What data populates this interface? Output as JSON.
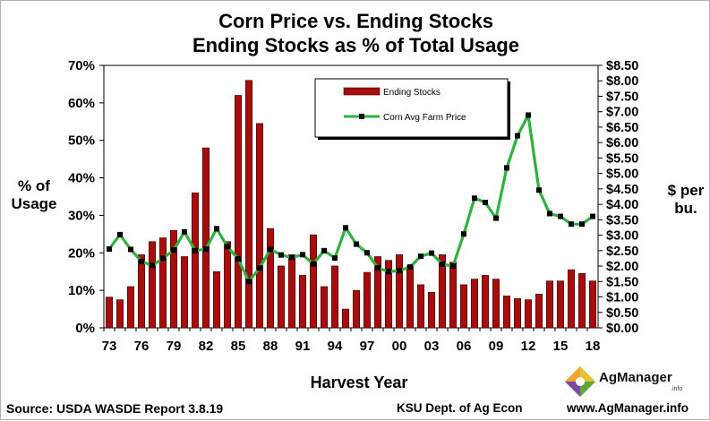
{
  "chart_data": {
    "type": "bar+line",
    "title": "Corn Price vs. Ending Stocks",
    "subtitle": "Ending Stocks as % of Total Usage",
    "xlabel": "Harvest Year",
    "ylabel_left": [
      "% of",
      "Usage"
    ],
    "ylabel_right": [
      "$ per",
      "bu."
    ],
    "x_tick_labels": [
      "73",
      "76",
      "79",
      "82",
      "85",
      "88",
      "91",
      "94",
      "97",
      "00",
      "03",
      "06",
      "09",
      "12",
      "15",
      "18"
    ],
    "years": [
      1973,
      1974,
      1975,
      1976,
      1977,
      1978,
      1979,
      1980,
      1981,
      1982,
      1983,
      1984,
      1985,
      1986,
      1987,
      1988,
      1989,
      1990,
      1991,
      1992,
      1993,
      1994,
      1995,
      1996,
      1997,
      1998,
      1999,
      2000,
      2001,
      2002,
      2003,
      2004,
      2005,
      2006,
      2007,
      2008,
      2009,
      2010,
      2011,
      2012,
      2013,
      2014,
      2015,
      2016,
      2017,
      2018
    ],
    "y_left_ticks": [
      "0%",
      "10%",
      "20%",
      "30%",
      "40%",
      "50%",
      "60%",
      "70%"
    ],
    "y_left_range": [
      0,
      70
    ],
    "y_right_ticks": [
      "$0.00",
      "$0.50",
      "$1.00",
      "$1.50",
      "$2.00",
      "$2.50",
      "$3.00",
      "$3.50",
      "$4.00",
      "$4.50",
      "$5.00",
      "$5.50",
      "$6.00",
      "$6.50",
      "$7.00",
      "$7.50",
      "$8.00",
      "$8.50"
    ],
    "y_right_range": [
      0,
      8.5
    ],
    "series": [
      {
        "name": "Ending Stocks",
        "type": "bar",
        "axis": "left",
        "color": "#a80d0d",
        "values": [
          8.2,
          7.5,
          11.0,
          19.5,
          23.0,
          24.0,
          26.0,
          19.0,
          36.0,
          48.0,
          15.0,
          23.0,
          62.0,
          66.0,
          54.5,
          26.5,
          16.5,
          19.5,
          14.0,
          24.8,
          11.0,
          16.5,
          5.0,
          10.0,
          14.8,
          19.0,
          18.0,
          19.5,
          16.5,
          11.5,
          9.5,
          19.5,
          17.5,
          11.5,
          13.0,
          14.0,
          13.0,
          8.5,
          7.8,
          7.5,
          9.0,
          12.5,
          12.5,
          15.5,
          14.5,
          12.5
        ]
      },
      {
        "name": "Corn Avg Farm Price",
        "type": "line",
        "axis": "right",
        "color": "#2db33d",
        "values": [
          2.55,
          3.02,
          2.54,
          2.15,
          2.02,
          2.25,
          2.52,
          3.11,
          2.5,
          2.55,
          3.21,
          2.63,
          2.23,
          1.5,
          1.94,
          2.54,
          2.36,
          2.28,
          2.37,
          2.07,
          2.5,
          2.26,
          3.24,
          2.71,
          2.43,
          1.94,
          1.82,
          1.85,
          1.97,
          2.32,
          2.42,
          2.06,
          2.0,
          3.04,
          4.2,
          4.06,
          3.55,
          5.18,
          6.22,
          6.89,
          4.46,
          3.7,
          3.61,
          3.36,
          3.36,
          3.61
        ]
      }
    ],
    "legend": [
      "Ending Stocks",
      "Corn Avg Farm Price"
    ],
    "legend_position": "top-center"
  },
  "footer": {
    "source": "Source:  USDA WASDE Report 3.8.19",
    "dept": "KSU Dept. of Ag Econ",
    "url": "www.AgManager.info"
  },
  "logo": {
    "name": "AgManager",
    "suffix": ".info"
  },
  "colors": {
    "bar": "#a80d0d",
    "line": "#2db33d",
    "marker": "#000000"
  }
}
